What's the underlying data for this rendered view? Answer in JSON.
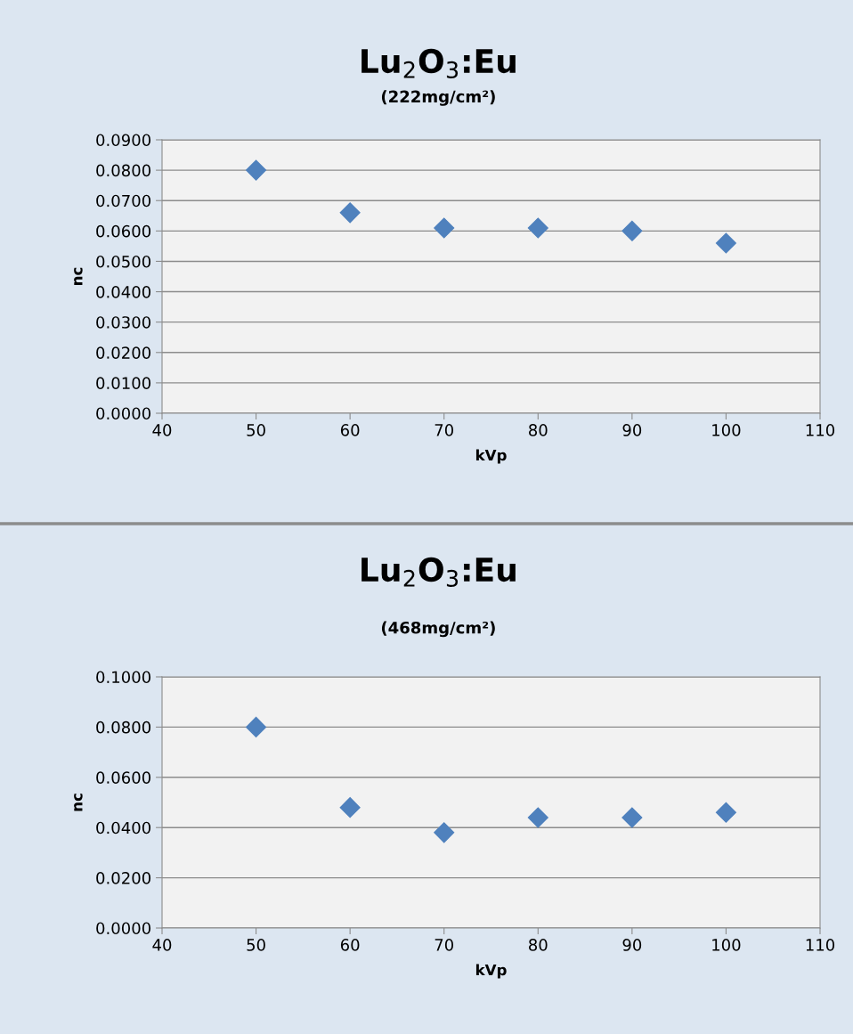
{
  "chart_data": [
    {
      "type": "scatter",
      "title": "Lu$_{2}$O$_{3}$:Eu",
      "subtitle": "(222mg/cm²)",
      "xlabel": "kVp",
      "ylabel": "nc",
      "marker": "diamond",
      "grid": "y",
      "series": [
        {
          "color": "#4f81bd",
          "x": [
            50,
            60,
            70,
            80,
            90,
            100
          ],
          "values": [
            0.08,
            0.066,
            0.061,
            0.061,
            0.06,
            0.056
          ]
        }
      ],
      "xlim": [
        40,
        110
      ],
      "xticks": [
        40,
        50,
        60,
        70,
        80,
        90,
        100,
        110
      ],
      "ylim": [
        0,
        0.09
      ],
      "yticks": [
        {
          "value": 0,
          "label": "0.0000"
        },
        {
          "value": 0.01,
          "label": "0.0100"
        },
        {
          "value": 0.02,
          "label": "0.0200"
        },
        {
          "value": 0.03,
          "label": "0.0300"
        },
        {
          "value": 0.04,
          "label": "0.0400"
        },
        {
          "value": 0.05,
          "label": "0.0500"
        },
        {
          "value": 0.06,
          "label": "0.0600"
        },
        {
          "value": 0.07,
          "label": "0.0700"
        },
        {
          "value": 0.08,
          "label": "0.0800"
        },
        {
          "value": 0.09,
          "label": "0.0900"
        }
      ]
    },
    {
      "type": "scatter",
      "title": "Lu$_{2}$O$_{3}$:Eu",
      "subtitle": "(468mg/cm²)",
      "xlabel": "kVp",
      "ylabel": "nc",
      "marker": "diamond",
      "grid": "y",
      "series": [
        {
          "color": "#4f81bd",
          "x": [
            50,
            60,
            70,
            80,
            90,
            100
          ],
          "values": [
            0.08,
            0.048,
            0.038,
            0.044,
            0.044,
            0.046
          ]
        }
      ],
      "xlim": [
        40,
        110
      ],
      "xticks": [
        40,
        50,
        60,
        70,
        80,
        90,
        100,
        110
      ],
      "ylim": [
        0,
        0.1
      ],
      "yticks": [
        {
          "value": 0,
          "label": "0.0000"
        },
        {
          "value": 0.02,
          "label": "0.0200"
        },
        {
          "value": 0.04,
          "label": "0.0400"
        },
        {
          "value": 0.06,
          "label": "0.0600"
        },
        {
          "value": 0.08,
          "label": "0.0800"
        },
        {
          "value": 0.1,
          "label": "0.1000"
        }
      ]
    }
  ]
}
